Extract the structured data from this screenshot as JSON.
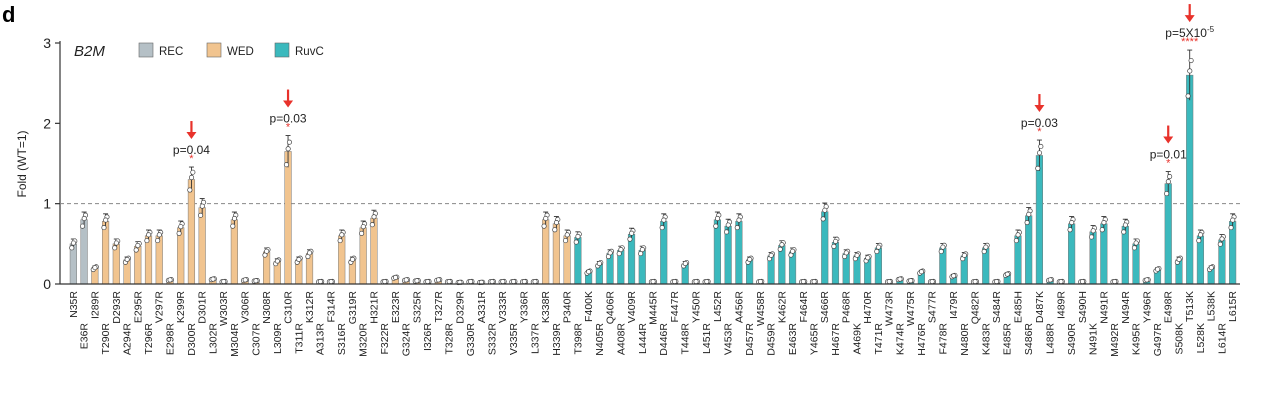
{
  "panel_label": "d",
  "chart_data": {
    "type": "bar",
    "title": "B2M",
    "ylabel": "Fold (WT=1)",
    "ylim": [
      0,
      3
    ],
    "yticks": [
      0,
      1,
      2,
      3
    ],
    "reference_line": 1,
    "legend": [
      {
        "name": "REC",
        "color": "#b5c0c6"
      },
      {
        "name": "WED",
        "color": "#f1c48f"
      },
      {
        "name": "RuvC",
        "color": "#3bb9bd"
      }
    ],
    "categories": [
      "N35R",
      "E36R",
      "I289R",
      "T290R",
      "D293R",
      "A294R",
      "E295R",
      "T296R",
      "V297R",
      "E298R",
      "K299R",
      "D300R",
      "D301R",
      "L302R",
      "W303R",
      "M304R",
      "V306R",
      "C307R",
      "N308R",
      "L309R",
      "C310R",
      "T311R",
      "K312R",
      "A313R",
      "F314R",
      "S316R",
      "G319R",
      "M320R",
      "H321R",
      "F322R",
      "E323R",
      "G324R",
      "S325R",
      "I326R",
      "T327R",
      "T328R",
      "D329R",
      "G330R",
      "A331R",
      "S332R",
      "V333R",
      "V335R",
      "Y336R",
      "L337R",
      "K338R",
      "H339R",
      "P340R",
      "T398R",
      "F400K",
      "N405R",
      "Q406R",
      "A408R",
      "V409R",
      "L444R",
      "M445R",
      "D446R",
      "F447R",
      "T448R",
      "Y450R",
      "L451R",
      "L452R",
      "V453R",
      "A456R",
      "D457R",
      "W458R",
      "D459R",
      "K462R",
      "E463R",
      "F464R",
      "Y465R",
      "S466R",
      "H467R",
      "P468R",
      "A469K",
      "H470R",
      "T471R",
      "W473R",
      "K474R",
      "W475R",
      "H476R",
      "S477R",
      "F478R",
      "I479R",
      "N480R",
      "Q482R",
      "K483R",
      "S484R",
      "E485R",
      "E485H",
      "S486R",
      "D487K",
      "L488R",
      "I489R",
      "S490R",
      "S490H",
      "N491K",
      "N491R",
      "M492R",
      "N494R",
      "K495R",
      "Y496R",
      "G497R",
      "E498R",
      "S508K",
      "T513K",
      "L528K",
      "L538K",
      "L614R",
      "L615R"
    ],
    "values": [
      0.5,
      0.8,
      0.2,
      0.78,
      0.5,
      0.3,
      0.47,
      0.6,
      0.6,
      0.05,
      0.7,
      1.3,
      0.95,
      0.06,
      0.03,
      0.8,
      0.05,
      0.04,
      0.4,
      0.28,
      1.65,
      0.3,
      0.38,
      0.03,
      0.03,
      0.6,
      0.3,
      0.7,
      0.82,
      0.03,
      0.08,
      0.05,
      0.04,
      0.03,
      0.05,
      0.03,
      0.02,
      0.03,
      0.02,
      0.03,
      0.03,
      0.03,
      0.03,
      0.03,
      0.8,
      0.75,
      0.6,
      0.58,
      0.15,
      0.25,
      0.38,
      0.42,
      0.62,
      0.42,
      0.03,
      0.78,
      0.03,
      0.25,
      0.03,
      0.03,
      0.8,
      0.72,
      0.78,
      0.3,
      0.03,
      0.35,
      0.48,
      0.4,
      0.03,
      0.03,
      0.9,
      0.52,
      0.38,
      0.35,
      0.32,
      0.45,
      0.03,
      0.06,
      0.04,
      0.15,
      0.03,
      0.45,
      0.1,
      0.35,
      0.03,
      0.45,
      0.03,
      0.12,
      0.6,
      0.85,
      1.6,
      0.05,
      0.03,
      0.75,
      0.03,
      0.65,
      0.75,
      0.03,
      0.72,
      0.5,
      0.05,
      0.18,
      1.25,
      0.3,
      2.6,
      0.6,
      0.2,
      0.55,
      0.78
    ],
    "groups": [
      "REC",
      "REC",
      "WED",
      "WED",
      "WED",
      "WED",
      "WED",
      "WED",
      "WED",
      "WED",
      "WED",
      "WED",
      "WED",
      "WED",
      "WED",
      "WED",
      "WED",
      "WED",
      "WED",
      "WED",
      "WED",
      "WED",
      "WED",
      "WED",
      "WED",
      "WED",
      "WED",
      "WED",
      "WED",
      "WED",
      "WED",
      "WED",
      "WED",
      "WED",
      "WED",
      "WED",
      "WED",
      "WED",
      "WED",
      "WED",
      "WED",
      "WED",
      "WED",
      "WED",
      "WED",
      "WED",
      "WED",
      "RuvC",
      "RuvC",
      "RuvC",
      "RuvC",
      "RuvC",
      "RuvC",
      "RuvC",
      "RuvC",
      "RuvC",
      "RuvC",
      "RuvC",
      "RuvC",
      "RuvC",
      "RuvC",
      "RuvC",
      "RuvC",
      "RuvC",
      "RuvC",
      "RuvC",
      "RuvC",
      "RuvC",
      "RuvC",
      "RuvC",
      "RuvC",
      "RuvC",
      "RuvC",
      "RuvC",
      "RuvC",
      "RuvC",
      "RuvC",
      "RuvC",
      "RuvC",
      "RuvC",
      "RuvC",
      "RuvC",
      "RuvC",
      "RuvC",
      "RuvC",
      "RuvC",
      "RuvC",
      "RuvC",
      "RuvC",
      "RuvC",
      "RuvC",
      "RuvC",
      "RuvC",
      "RuvC",
      "RuvC",
      "RuvC",
      "RuvC",
      "RuvC",
      "RuvC",
      "RuvC",
      "RuvC",
      "RuvC",
      "RuvC",
      "RuvC",
      "RuvC",
      "RuvC",
      "RuvC",
      "RuvC",
      "RuvC"
    ],
    "annotations": [
      {
        "category": "D300R",
        "text": "p=0.04",
        "stars": "*"
      },
      {
        "category": "C310R",
        "text": "p=0.03",
        "stars": "*"
      },
      {
        "category": "D487K",
        "text": "p=0.03",
        "stars": "*"
      },
      {
        "category": "E498R",
        "text": "p=0.01",
        "stars": "*"
      },
      {
        "category": "T513K",
        "text": "p=5X10",
        "sup": "-5",
        "stars": "****"
      }
    ],
    "grid": false
  }
}
